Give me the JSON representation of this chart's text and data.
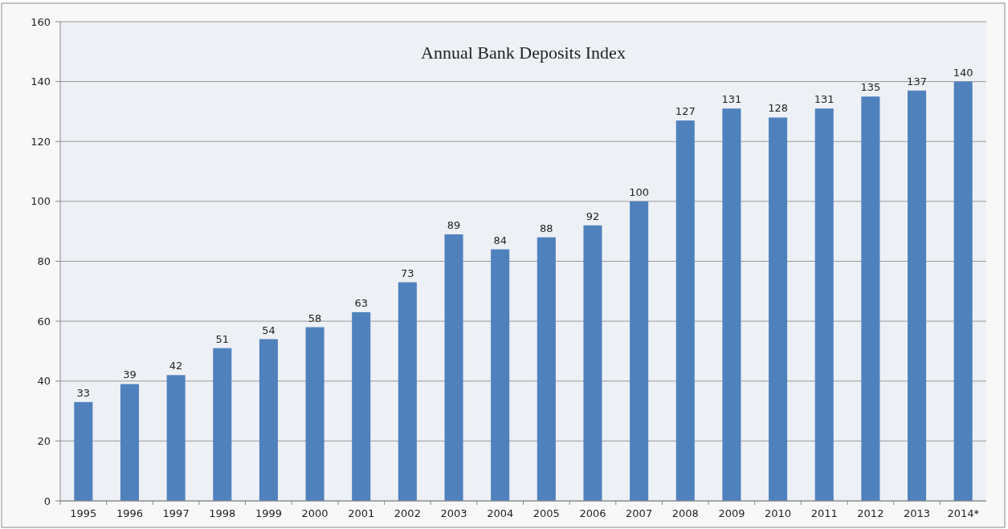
{
  "chart_data": {
    "type": "bar",
    "title": "Annual Bank Deposits Index",
    "categories": [
      "1995",
      "1996",
      "1997",
      "1998",
      "1999",
      "2000",
      "2001",
      "2002",
      "2003",
      "2004",
      "2005",
      "2006",
      "2007",
      "2008",
      "2009",
      "2010",
      "2011",
      "2012",
      "2013",
      "2014*"
    ],
    "values": [
      33,
      39,
      42,
      51,
      54,
      58,
      63,
      73,
      89,
      84,
      88,
      92,
      100,
      127,
      131,
      128,
      131,
      135,
      137,
      140
    ],
    "color": "#4f81bd",
    "data_labels": true,
    "ylim": [
      0,
      160
    ],
    "yticks": [
      0,
      20,
      40,
      60,
      80,
      100,
      120,
      140,
      160
    ],
    "grid": "y"
  }
}
